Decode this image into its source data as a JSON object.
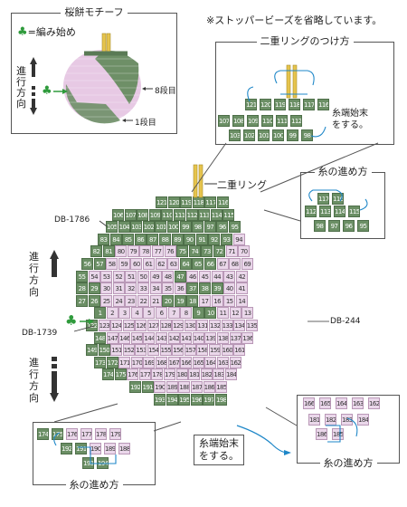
{
  "header": {
    "title": "桜餅モチーフ",
    "omit_note": "※ストッパービーズを省略しています。"
  },
  "legend": {
    "clover": "♣",
    "start_label": "=編み始め",
    "direction": "進行方向",
    "row8": "8段目",
    "row1": "1段目"
  },
  "inset_ring": {
    "title": "二重リングのつけ方",
    "end_note_line1": "糸端始末",
    "end_note_line2": "をする。"
  },
  "ring_label": "二重リング",
  "inset_path_top": {
    "title": "糸の進め方"
  },
  "inset_path_bottom_right": {
    "title": "糸の進め方"
  },
  "inset_path_bottom_left": {
    "title": "糸の進め方"
  },
  "side_labels": {
    "db1786": "DB-1786",
    "db244": "DB-244",
    "db1739": "DB-1739",
    "direction_upper": "進行方向",
    "direction_lower": "進行方向"
  },
  "end_note_bottom": {
    "line1": "糸端始末",
    "line2": "をする。"
  },
  "colors": {
    "dark_bead": "#6b8f65",
    "pink_bead": "#ead7ea",
    "accent_blue": "#1e87c8",
    "clover_green": "#2f9b3c"
  },
  "bead_rows": [
    {
      "nums": [
        121,
        120,
        119,
        118,
        117,
        116
      ],
      "dark": [
        121,
        120,
        119,
        118,
        117,
        116
      ]
    },
    {
      "nums": [
        106,
        107,
        108,
        109,
        110,
        111,
        112,
        113,
        114,
        115
      ],
      "dark": [
        106,
        107,
        108,
        109,
        110,
        111,
        112,
        113,
        114,
        115
      ]
    },
    {
      "nums": [
        105,
        104,
        103,
        102,
        101,
        100,
        99,
        98,
        97,
        96,
        95
      ],
      "dark": [
        105,
        104,
        103,
        102,
        101,
        100,
        99,
        98,
        97,
        96,
        95
      ]
    },
    {
      "nums": [
        83,
        84,
        85,
        86,
        87,
        88,
        89,
        90,
        91,
        92,
        93,
        94
      ],
      "dark": [
        83,
        84,
        85,
        86,
        87,
        88,
        89,
        90,
        91,
        92,
        93
      ]
    },
    {
      "nums": [
        82,
        81,
        80,
        79,
        78,
        77,
        76,
        75,
        74,
        73,
        72,
        71,
        70
      ],
      "dark": [
        82,
        81,
        75,
        74,
        73,
        72
      ]
    },
    {
      "nums": [
        56,
        57,
        58,
        59,
        60,
        61,
        62,
        63,
        64,
        65,
        66,
        67,
        68,
        69
      ],
      "dark": [
        56,
        57,
        64,
        65,
        66
      ]
    },
    {
      "nums": [
        55,
        54,
        53,
        52,
        51,
        50,
        49,
        48,
        47,
        46,
        45,
        44,
        43,
        42
      ],
      "dark": [
        55,
        47
      ]
    },
    {
      "nums": [
        28,
        29,
        30,
        31,
        32,
        33,
        34,
        35,
        36,
        37,
        38,
        39,
        40,
        41
      ],
      "dark": [
        28,
        29,
        37,
        38,
        39
      ]
    },
    {
      "nums": [
        27,
        26,
        25,
        24,
        23,
        22,
        21,
        20,
        19,
        18,
        17,
        16,
        15,
        14
      ],
      "dark": [
        27,
        26,
        20,
        19,
        18
      ]
    },
    {
      "nums": [
        1,
        2,
        3,
        4,
        5,
        6,
        7,
        8,
        9,
        10,
        11,
        12,
        13
      ],
      "dark": [
        1,
        9,
        10
      ]
    },
    {
      "nums": [
        122,
        123,
        124,
        125,
        126,
        127,
        128,
        129,
        130,
        131,
        132,
        133,
        134,
        135
      ],
      "dark": [
        122
      ]
    },
    {
      "nums": [
        148,
        147,
        146,
        145,
        144,
        143,
        142,
        141,
        140,
        139,
        138,
        137,
        136
      ],
      "dark": [
        148
      ]
    },
    {
      "nums": [
        149,
        150,
        151,
        152,
        153,
        154,
        155,
        156,
        157,
        158,
        159,
        160,
        161
      ],
      "dark": [
        149,
        150
      ]
    },
    {
      "nums": [
        173,
        172,
        171,
        170,
        169,
        168,
        167,
        166,
        165,
        164,
        163,
        162
      ],
      "dark": [
        173,
        172
      ]
    },
    {
      "nums": [
        174,
        175,
        176,
        177,
        178,
        179,
        180,
        181,
        182,
        183,
        184
      ],
      "dark": [
        174,
        175
      ]
    },
    {
      "nums": [
        192,
        191,
        190,
        189,
        188,
        187,
        186,
        185
      ],
      "dark": [
        192,
        191
      ]
    },
    {
      "nums": [
        193,
        194,
        195,
        196,
        197,
        198
      ],
      "dark": [
        193,
        194,
        195,
        196,
        197,
        198
      ]
    }
  ],
  "ring_inset_rows": [
    [
      121,
      120,
      119,
      118,
      117,
      116
    ],
    [
      107,
      108,
      109,
      110,
      111,
      112
    ],
    [
      103,
      102,
      101,
      100,
      99,
      98
    ]
  ],
  "path_top_rows": [
    [
      117,
      116
    ],
    [
      112,
      113,
      114,
      115
    ],
    [
      98,
      97,
      96,
      95
    ]
  ],
  "path_br_rows": [
    [
      166,
      165,
      164,
      163,
      162
    ],
    [
      181,
      182,
      183,
      184
    ],
    [
      186,
      185
    ]
  ],
  "path_bl_rows": [
    [
      174,
      175,
      176,
      177,
      178,
      179
    ],
    [
      192,
      191,
      190,
      189,
      188
    ],
    [
      193,
      194
    ]
  ]
}
